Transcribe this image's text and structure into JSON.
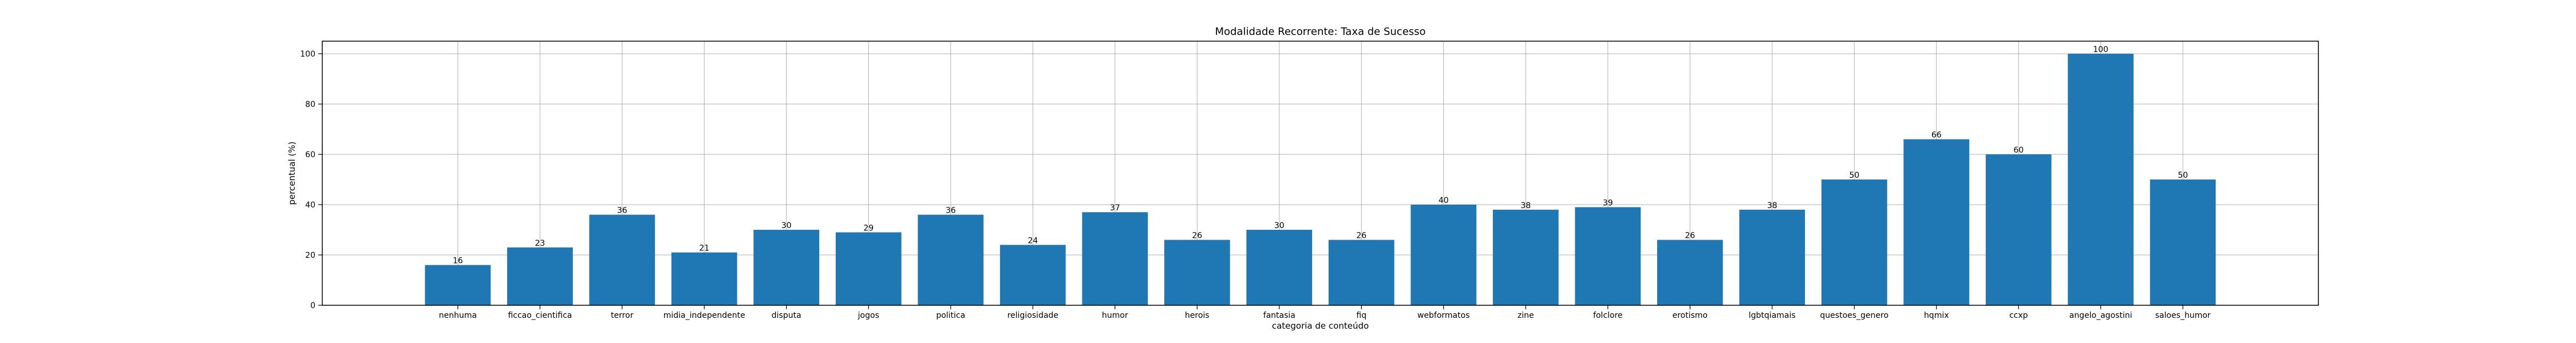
{
  "chart_data": {
    "type": "bar",
    "title": "Modalidade Recorrente: Taxa de Sucesso",
    "xlabel": "categoria de conteúdo",
    "ylabel": "percentual (%)",
    "ylim": [
      0,
      105
    ],
    "yticks": [
      0,
      20,
      40,
      60,
      80,
      100
    ],
    "grid": true,
    "bar_color": "#1f77b4",
    "categories": [
      "nenhuma",
      "ficcao_cientifica",
      "terror",
      "midia_independente",
      "disputa",
      "jogos",
      "politica",
      "religiosidade",
      "humor",
      "herois",
      "fantasia",
      "fiq",
      "webformatos",
      "zine",
      "folclore",
      "erotismo",
      "lgbtqiamais",
      "questoes_genero",
      "hqmix",
      "ccxp",
      "angelo_agostini",
      "saloes_humor"
    ],
    "values": [
      16,
      23,
      36,
      21,
      30,
      29,
      36,
      24,
      37,
      26,
      30,
      26,
      40,
      38,
      39,
      26,
      38,
      50,
      66,
      60,
      100,
      50
    ],
    "value_labels": [
      "16",
      "23",
      "36",
      "21",
      "30",
      "29",
      "36",
      "24",
      "37",
      "26",
      "30",
      "26",
      "40",
      "38",
      "39",
      "26",
      "38",
      "50",
      "66",
      "60",
      "100",
      "50"
    ]
  }
}
